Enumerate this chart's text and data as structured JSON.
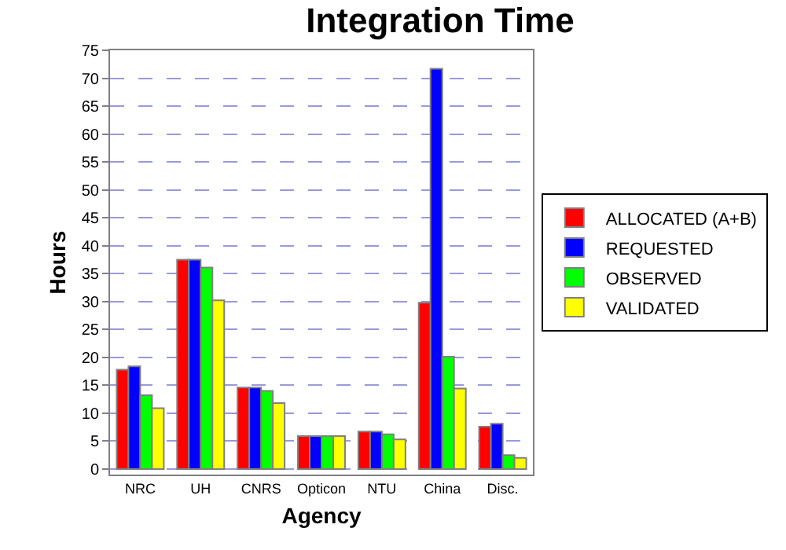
{
  "chart_data": {
    "type": "bar",
    "title": "Integration Time",
    "xlabel": "Agency",
    "ylabel": "Hours",
    "categories": [
      "NRC",
      "UH",
      "CNRS",
      "Opticon",
      "NTU",
      "China",
      "Disc."
    ],
    "series": [
      {
        "name": "ALLOCATED (A+B)",
        "color": "#ff0000",
        "values": [
          17.8,
          37.5,
          14.6,
          5.9,
          6.7,
          29.8,
          7.6
        ]
      },
      {
        "name": "REQUESTED",
        "color": "#0000ff",
        "values": [
          18.4,
          37.5,
          14.6,
          5.9,
          6.7,
          71.7,
          8.1
        ]
      },
      {
        "name": "OBSERVED",
        "color": "#00ff00",
        "values": [
          13.2,
          36.1,
          14.0,
          5.9,
          6.2,
          20.1,
          2.5
        ]
      },
      {
        "name": "VALIDATED",
        "color": "#ffff00",
        "values": [
          10.9,
          30.2,
          11.8,
          5.9,
          5.3,
          14.4,
          2.0
        ]
      }
    ],
    "ylim": [
      -1,
      75
    ],
    "yticks": [
      0,
      5,
      10,
      15,
      20,
      25,
      30,
      35,
      40,
      45,
      50,
      55,
      60,
      65,
      70,
      75
    ],
    "grid": "y",
    "legend": "right"
  }
}
